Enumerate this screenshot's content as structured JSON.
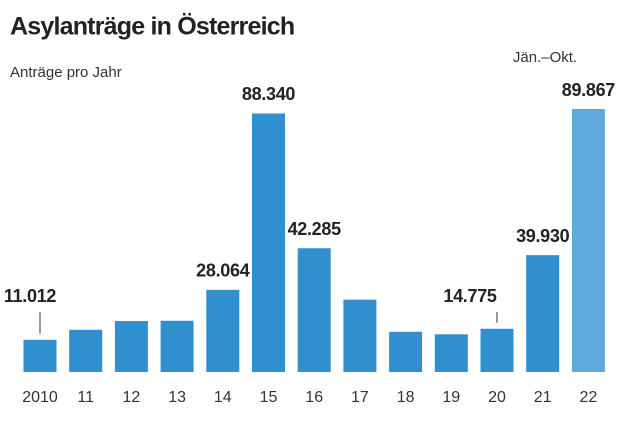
{
  "chart_data": {
    "type": "bar",
    "title": "Asylanträge in Österreich",
    "subtitle": "Anträge pro Jahr",
    "annotation": "Jän.–Okt.",
    "categories": [
      "2010",
      "11",
      "12",
      "13",
      "14",
      "15",
      "16",
      "17",
      "18",
      "19",
      "20",
      "21",
      "22"
    ],
    "values": [
      11012,
      14416,
      17413,
      17503,
      28064,
      88340,
      42285,
      24735,
      13746,
      12886,
      14775,
      39930,
      89867
    ],
    "value_labels": [
      "11.012",
      null,
      null,
      null,
      "28.064",
      "88.340",
      "42.285",
      null,
      null,
      null,
      "14.775",
      "39.930",
      "89.867"
    ],
    "colors": [
      "#2f8fcf",
      "#2f8fcf",
      "#2f8fcf",
      "#2f8fcf",
      "#2f8fcf",
      "#2f8fcf",
      "#2f8fcf",
      "#2f8fcf",
      "#2f8fcf",
      "#2f8fcf",
      "#2f8fcf",
      "#2f8fcf",
      "#5eaadc"
    ]
  }
}
